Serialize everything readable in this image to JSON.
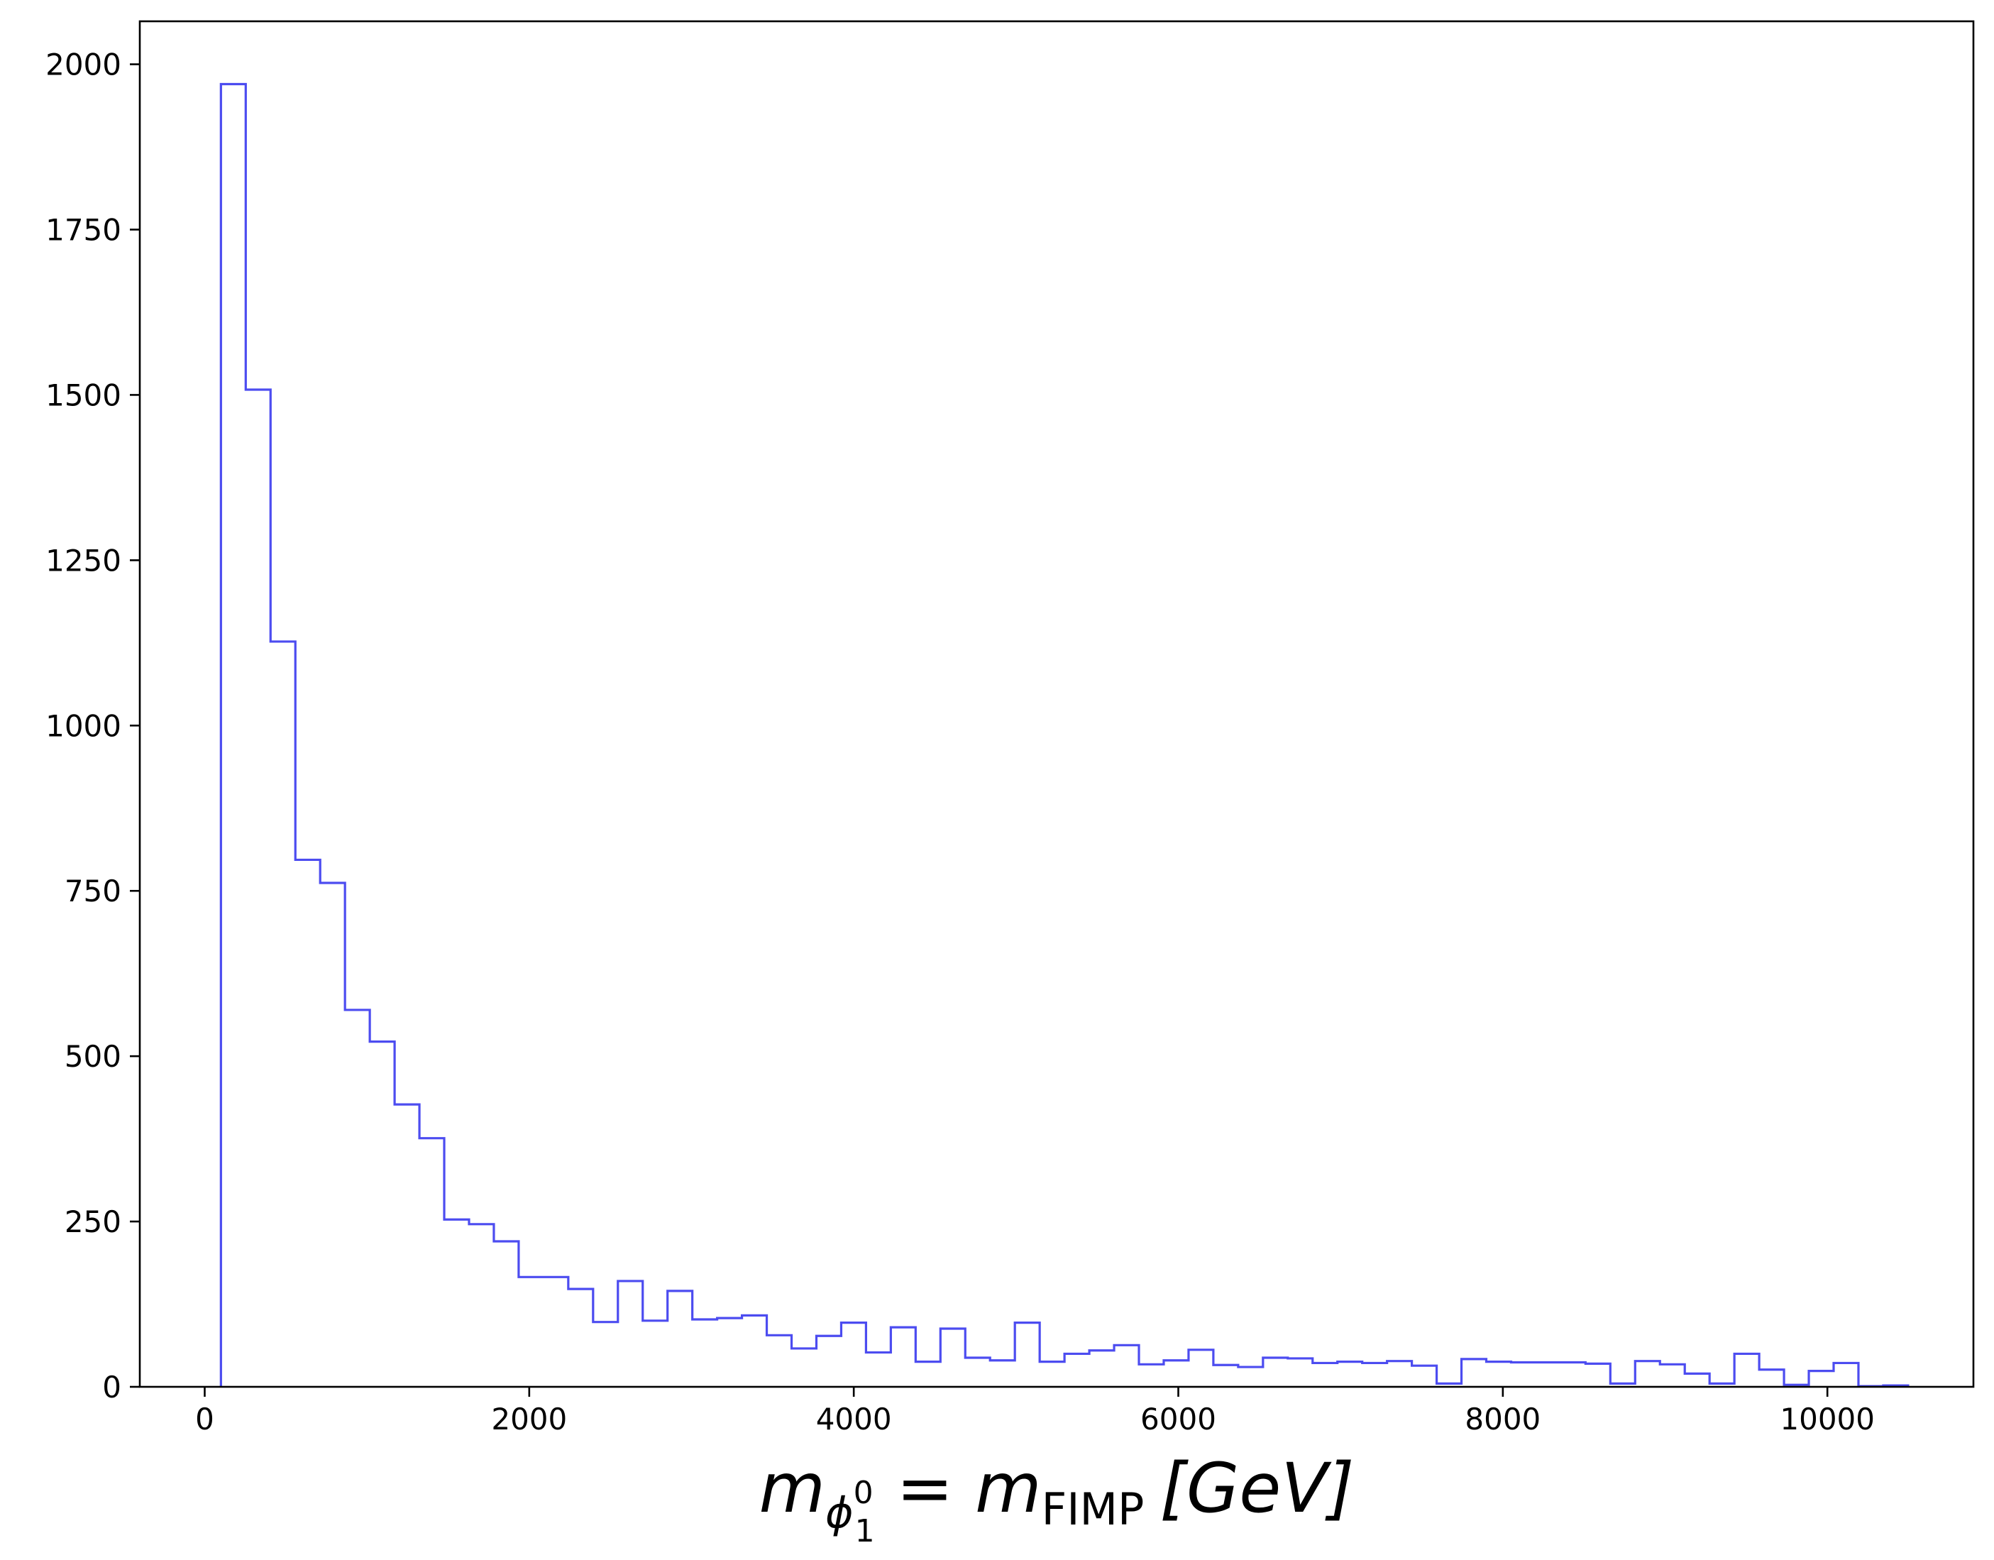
{
  "chart_data": {
    "type": "histogram",
    "xlabel_parts": {
      "m1": "m",
      "phi": "ϕ",
      "phi_sub": "1",
      "phi_sup": "0",
      "eq": " = ",
      "m2": "m",
      "fimp": "FIMP",
      "unit": "[GeV]"
    },
    "ylabel": "",
    "title": "",
    "xlim": [
      -400,
      10900
    ],
    "ylim": [
      0,
      2065
    ],
    "x_ticks": [
      0,
      2000,
      4000,
      6000,
      8000,
      10000
    ],
    "x_tick_labels": [
      "0",
      "2000",
      "4000",
      "6000",
      "8000",
      "10000"
    ],
    "y_ticks": [
      0,
      250,
      500,
      750,
      1000,
      1250,
      1500,
      1750,
      2000
    ],
    "y_tick_labels": [
      "0",
      "250",
      "500",
      "750",
      "1000",
      "1250",
      "1500",
      "1750",
      "2000"
    ],
    "bin_start": 100,
    "bin_width": 152.9,
    "counts": [
      1970,
      1508,
      1127,
      797,
      762,
      570,
      522,
      427,
      376,
      253,
      246,
      220,
      166,
      166,
      148,
      98,
      160,
      100,
      145,
      102,
      104,
      108,
      78,
      58,
      77,
      97,
      52,
      90,
      38,
      88,
      44,
      40,
      97,
      38,
      50,
      55,
      63,
      34,
      40,
      56,
      33,
      30,
      44,
      43,
      36,
      38,
      36,
      39,
      32,
      5,
      42,
      38,
      37,
      37,
      37,
      35,
      5,
      39,
      34,
      20,
      5,
      50,
      26,
      3,
      24,
      36,
      1,
      2
    ],
    "color": "#4c4cf0"
  }
}
